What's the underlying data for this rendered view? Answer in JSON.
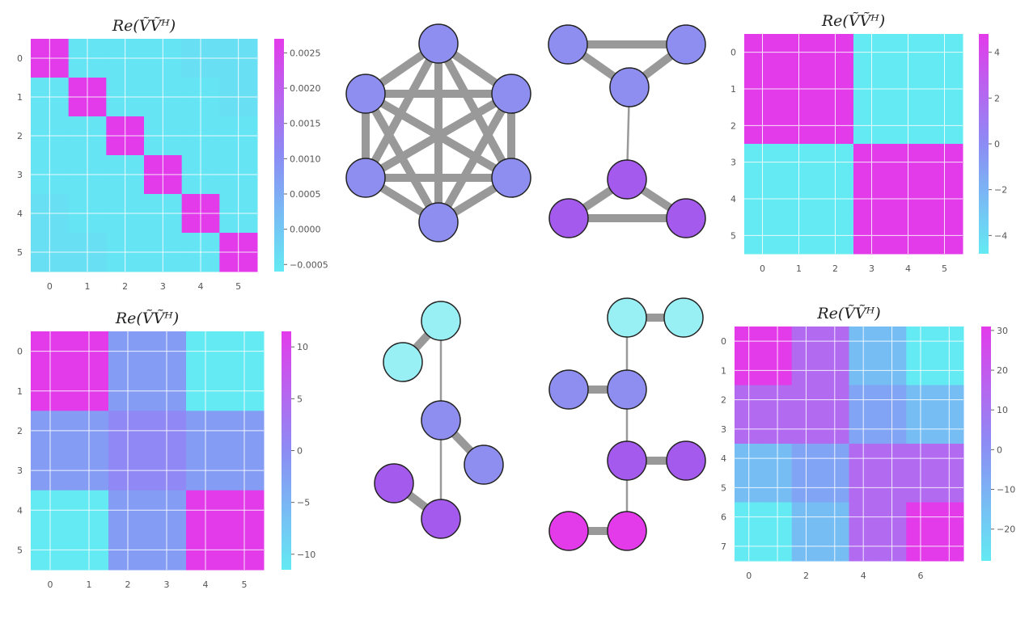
{
  "colors": {
    "low": "#63eaf3",
    "mid": "#8c8cf4",
    "high": "#e33bea",
    "edge": "#999999",
    "node_stroke": "#222222"
  },
  "chart_data": [
    {
      "type": "heatmap",
      "title": "Re(ṼṼᴴ)",
      "x_ticks": [
        "0",
        "1",
        "2",
        "3",
        "4",
        "5"
      ],
      "y_ticks": [
        "0",
        "1",
        "2",
        "3",
        "4",
        "5"
      ],
      "colorbar_ticks": [
        "0.0025",
        "0.0020",
        "0.0015",
        "0.0010",
        "0.0005",
        "0.0000",
        "−0.0005"
      ],
      "vmin": -0.0006,
      "vmax": 0.0027,
      "values": [
        [
          0.0027,
          -0.0005,
          -0.0005,
          -0.0005,
          -0.0004,
          -0.0004
        ],
        [
          -0.0005,
          0.0027,
          -0.0005,
          -0.0005,
          -0.0005,
          -0.0004
        ],
        [
          -0.0005,
          -0.0005,
          0.0027,
          -0.0005,
          -0.0005,
          -0.0005
        ],
        [
          -0.0005,
          -0.0005,
          -0.0005,
          0.0027,
          -0.0005,
          -0.0005
        ],
        [
          -0.0004,
          -0.0005,
          -0.0005,
          -0.0005,
          0.0027,
          -0.0005
        ],
        [
          -0.0004,
          -0.0004,
          -0.0005,
          -0.0005,
          -0.0005,
          0.0027
        ]
      ]
    },
    {
      "type": "heatmap",
      "title": "Re(ṼṼᴴ)",
      "x_ticks": [
        "0",
        "1",
        "2",
        "3",
        "4",
        "5"
      ],
      "y_ticks": [
        "0",
        "1",
        "2",
        "3",
        "4",
        "5"
      ],
      "colorbar_ticks": [
        "4",
        "2",
        "0",
        "−2",
        "−4"
      ],
      "vmin": -4.8,
      "vmax": 4.8,
      "values": [
        [
          4.8,
          4.8,
          4.8,
          -4.8,
          -4.8,
          -4.8
        ],
        [
          4.8,
          4.8,
          4.8,
          -4.8,
          -4.8,
          -4.8
        ],
        [
          4.8,
          4.8,
          4.8,
          -4.8,
          -4.8,
          -4.8
        ],
        [
          -4.8,
          -4.8,
          -4.8,
          4.8,
          4.8,
          4.8
        ],
        [
          -4.8,
          -4.8,
          -4.8,
          4.8,
          4.8,
          4.8
        ],
        [
          -4.8,
          -4.8,
          -4.8,
          4.8,
          4.8,
          4.8
        ]
      ]
    },
    {
      "type": "heatmap",
      "title": "Re(ṼṼᴴ)",
      "x_ticks": [
        "0",
        "1",
        "2",
        "3",
        "4",
        "5"
      ],
      "y_ticks": [
        "0",
        "1",
        "2",
        "3",
        "4",
        "5"
      ],
      "colorbar_ticks": [
        "10",
        "5",
        "0",
        "−5",
        "−10"
      ],
      "vmin": -11.5,
      "vmax": 11.5,
      "values": [
        [
          11.5,
          11.5,
          -2,
          -2,
          -11.5,
          -11.5
        ],
        [
          11.5,
          11.5,
          -2,
          -2,
          -11.5,
          -11.5
        ],
        [
          -2,
          -2,
          0.5,
          0.5,
          -2,
          -2
        ],
        [
          -2,
          -2,
          0.5,
          0.5,
          -2,
          -2
        ],
        [
          -11.5,
          -11.5,
          -2,
          -2,
          11.5,
          11.5
        ],
        [
          -11.5,
          -11.5,
          -2,
          -2,
          11.5,
          11.5
        ]
      ]
    },
    {
      "type": "heatmap",
      "title": "Re(ṼṼᴴ)",
      "x_ticks": [
        "0",
        "2",
        "4",
        "6"
      ],
      "y_ticks": [
        "0",
        "1",
        "2",
        "3",
        "4",
        "5",
        "6",
        "7"
      ],
      "colorbar_ticks": [
        "30",
        "20",
        "10",
        "0",
        "−10",
        "−20"
      ],
      "vmin": -28,
      "vmax": 31,
      "values": [
        [
          31,
          31,
          14,
          14,
          -14,
          -14,
          -28,
          -28
        ],
        [
          31,
          31,
          14,
          14,
          -14,
          -14,
          -28,
          -28
        ],
        [
          14,
          14,
          14,
          14,
          -6,
          -6,
          -14,
          -14
        ],
        [
          14,
          14,
          14,
          14,
          -6,
          -6,
          -14,
          -14
        ],
        [
          -14,
          -14,
          -6,
          -6,
          14,
          14,
          14,
          14
        ],
        [
          -14,
          -14,
          -6,
          -6,
          14,
          14,
          14,
          14
        ],
        [
          -28,
          -28,
          -14,
          -14,
          14,
          14,
          31,
          31
        ],
        [
          -28,
          -28,
          -14,
          -14,
          14,
          14,
          31,
          31
        ]
      ]
    }
  ],
  "graphs": [
    {
      "nodes": [
        "mid",
        "mid",
        "mid",
        "mid",
        "mid",
        "mid"
      ],
      "edges": [
        [
          0,
          1,
          "thick"
        ],
        [
          0,
          2,
          "thick"
        ],
        [
          0,
          3,
          "thick"
        ],
        [
          0,
          4,
          "thick"
        ],
        [
          0,
          5,
          "thick"
        ],
        [
          1,
          2,
          "thick"
        ],
        [
          1,
          3,
          "thick"
        ],
        [
          1,
          4,
          "thick"
        ],
        [
          1,
          5,
          "thick"
        ],
        [
          2,
          3,
          "thick"
        ],
        [
          2,
          4,
          "thick"
        ],
        [
          2,
          5,
          "thick"
        ],
        [
          3,
          4,
          "thick"
        ],
        [
          3,
          5,
          "thick"
        ],
        [
          4,
          5,
          "thick"
        ]
      ]
    },
    {
      "nodes": [
        "mid",
        "mid",
        "mid",
        "purple",
        "purple",
        "purple"
      ],
      "edges": [
        [
          0,
          1,
          "thick"
        ],
        [
          0,
          2,
          "thick"
        ],
        [
          1,
          2,
          "thick"
        ],
        [
          2,
          3,
          "thin"
        ],
        [
          3,
          4,
          "thick"
        ],
        [
          3,
          5,
          "thick"
        ],
        [
          4,
          5,
          "thick"
        ]
      ]
    },
    {
      "nodes": [
        "low",
        "low",
        "mid",
        "mid",
        "purple",
        "purple"
      ],
      "edges": [
        [
          0,
          1,
          "thick"
        ],
        [
          0,
          2,
          "thin"
        ],
        [
          2,
          3,
          "thick"
        ],
        [
          2,
          5,
          "thin"
        ],
        [
          4,
          5,
          "thick"
        ]
      ]
    },
    {
      "nodes": [
        "low",
        "low",
        "mid",
        "mid",
        "purple",
        "purple",
        "high",
        "high"
      ],
      "edges": [
        [
          0,
          1,
          "thick"
        ],
        [
          0,
          3,
          "thin"
        ],
        [
          2,
          3,
          "thick"
        ],
        [
          3,
          4,
          "thin"
        ],
        [
          4,
          5,
          "thick"
        ],
        [
          4,
          7,
          "thin"
        ],
        [
          6,
          7,
          "thick"
        ]
      ]
    }
  ]
}
